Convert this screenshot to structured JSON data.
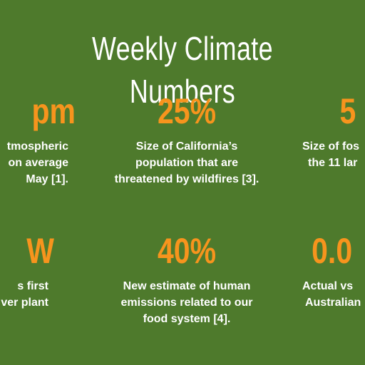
{
  "header": {
    "title": "Weekly Climate Numbers"
  },
  "stats": [
    {
      "value": "pm",
      "lines": [
        "tmospheric",
        "on average",
        "May [1]."
      ]
    },
    {
      "value": "25%",
      "lines": [
        "Size of California’s",
        "population that are",
        "threatened by wildfires [3]."
      ]
    },
    {
      "value": "5",
      "lines": [
        "Size of fos",
        "the 11 lar"
      ]
    },
    {
      "value": "W",
      "lines": [
        "s first",
        "ver plant"
      ]
    },
    {
      "value": "40%",
      "lines": [
        "New estimate of human",
        "emissions related to our",
        "food system [4]."
      ]
    },
    {
      "value": "0.0",
      "lines": [
        "Actual vs",
        "Australian"
      ]
    }
  ],
  "colors": {
    "background": "#4e7a2c",
    "accent": "#f7941d",
    "text": "#ffffff"
  }
}
